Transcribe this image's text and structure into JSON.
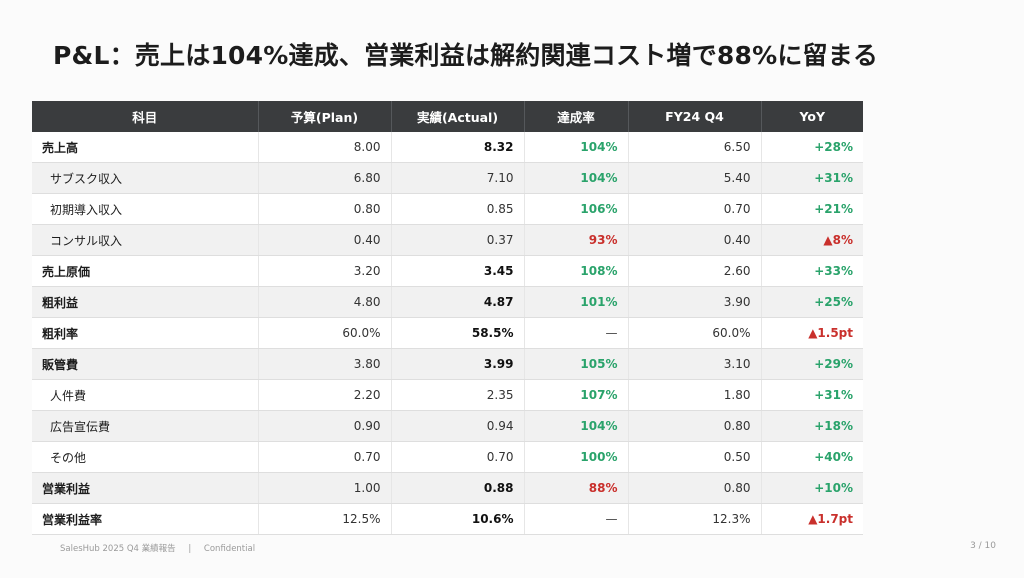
{
  "title": "P&L：売上は104%達成、営業利益は解約関連コスト増で88%に留まる",
  "table": {
    "headers": [
      "科目",
      "予算(Plan)",
      "実績(Actual)",
      "達成率",
      "FY24 Q4",
      "YoY"
    ],
    "rows": [
      {
        "label": "売上高",
        "plan": "8.00",
        "actual": "8.32",
        "rate": "104%",
        "prev": "6.50",
        "yoy": "+28%"
      },
      {
        "label": "サブスク収入",
        "plan": "6.80",
        "actual": "7.10",
        "rate": "104%",
        "prev": "5.40",
        "yoy": "+31%"
      },
      {
        "label": "初期導入収入",
        "plan": "0.80",
        "actual": "0.85",
        "rate": "106%",
        "prev": "0.70",
        "yoy": "+21%"
      },
      {
        "label": "コンサル収入",
        "plan": "0.40",
        "actual": "0.37",
        "rate": "93%",
        "prev": "0.40",
        "yoy": "▲8%"
      },
      {
        "label": "売上原価",
        "plan": "3.20",
        "actual": "3.45",
        "rate": "108%",
        "prev": "2.60",
        "yoy": "+33%"
      },
      {
        "label": "粗利益",
        "plan": "4.80",
        "actual": "4.87",
        "rate": "101%",
        "prev": "3.90",
        "yoy": "+25%"
      },
      {
        "label": "粗利率",
        "plan": "60.0%",
        "actual": "58.5%",
        "rate": "—",
        "prev": "60.0%",
        "yoy": "▲1.5pt"
      },
      {
        "label": "販管費",
        "plan": "3.80",
        "actual": "3.99",
        "rate": "105%",
        "prev": "3.10",
        "yoy": "+29%"
      },
      {
        "label": "人件費",
        "plan": "2.20",
        "actual": "2.35",
        "rate": "107%",
        "prev": "1.80",
        "yoy": "+31%"
      },
      {
        "label": "広告宣伝費",
        "plan": "0.90",
        "actual": "0.94",
        "rate": "104%",
        "prev": "0.80",
        "yoy": "+18%"
      },
      {
        "label": "その他",
        "plan": "0.70",
        "actual": "0.70",
        "rate": "100%",
        "prev": "0.50",
        "yoy": "+40%"
      },
      {
        "label": "営業利益",
        "plan": "1.00",
        "actual": "0.88",
        "rate": "88%",
        "prev": "0.80",
        "yoy": "+10%"
      },
      {
        "label": "営業利益率",
        "plan": "12.5%",
        "actual": "10.6%",
        "rate": "—",
        "prev": "12.3%",
        "yoy": "▲1.7pt"
      }
    ]
  },
  "footer": {
    "left": "SalesHub 2025 Q4 業績報告",
    "separator": "|",
    "right": "Confidential"
  },
  "page_number": "3 / 10",
  "colors": {
    "header_bg": "#3a3c3e",
    "positive": "#2aa36b",
    "negative": "#c9302c"
  }
}
